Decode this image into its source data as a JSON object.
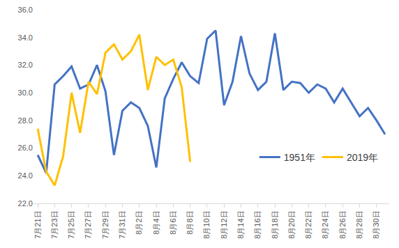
{
  "chart_data": {
    "type": "line",
    "categories": [
      "7月21日",
      null,
      "7月23日",
      null,
      "7月25日",
      null,
      "7月27日",
      null,
      "7月29日",
      null,
      "7月31日",
      null,
      "8月2日",
      null,
      "8月4日",
      null,
      "8月6日",
      null,
      "8月8日",
      null,
      "8月10日",
      null,
      "8月12日",
      null,
      "8月14日",
      null,
      "8月16日",
      null,
      "8月18日",
      null,
      "8月20日",
      null,
      "8月22日",
      null,
      "8月24日",
      null,
      "8月26日",
      null,
      "8月28日",
      null,
      "8月30日",
      null
    ],
    "series": [
      {
        "name": "1951年",
        "color": "#4472C4",
        "values": [
          25.5,
          24.2,
          30.6,
          31.2,
          31.9,
          30.3,
          30.6,
          32.0,
          30.1,
          25.5,
          28.7,
          29.3,
          28.9,
          27.6,
          24.6,
          29.6,
          31.0,
          32.2,
          31.2,
          30.7,
          33.9,
          34.5,
          29.1,
          30.8,
          34.1,
          31.4,
          30.2,
          30.8,
          34.3,
          30.2,
          30.8,
          30.7,
          30.0,
          30.6,
          30.3,
          29.3,
          30.3,
          29.3,
          28.3,
          28.9,
          28.0,
          27.0
        ]
      },
      {
        "name": "2019年",
        "color": "#FFC000",
        "values": [
          27.4,
          24.3,
          23.3,
          25.4,
          30.0,
          27.1,
          30.8,
          29.9,
          32.9,
          33.5,
          32.4,
          33.0,
          34.2,
          30.2,
          32.6,
          32.0,
          32.4,
          30.4,
          25.0,
          null,
          null,
          null,
          null,
          null,
          null,
          null,
          null,
          null,
          null,
          null,
          null,
          null,
          null,
          null,
          null,
          null,
          null,
          null,
          null,
          null,
          null,
          null
        ]
      }
    ],
    "ylim": [
      22,
      36
    ],
    "yticks": [
      {
        "value": 22,
        "label": "22.0"
      },
      {
        "value": 24,
        "label": "24.0"
      },
      {
        "value": 26,
        "label": "26.0"
      },
      {
        "value": 28,
        "label": "28.0"
      },
      {
        "value": 30,
        "label": "30.0"
      },
      {
        "value": 32,
        "label": "32.0"
      },
      {
        "value": 34,
        "label": "34.0"
      },
      {
        "value": 36,
        "label": "36.0"
      }
    ],
    "grid": false,
    "legend": "bottom right"
  }
}
